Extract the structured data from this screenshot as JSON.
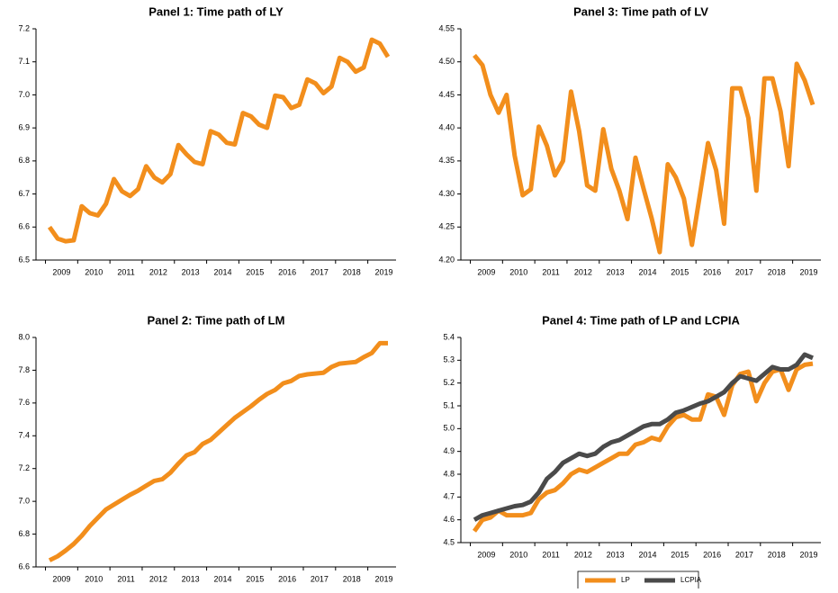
{
  "chart_data": [
    {
      "type": "line",
      "title": "Panel 1: Time path of LY",
      "categories": [
        null,
        "2009",
        null,
        null,
        null,
        "2010",
        null,
        null,
        null,
        "2011",
        null,
        null,
        null,
        "2012",
        null,
        null,
        null,
        "2013",
        null,
        null,
        null,
        "2014",
        null,
        null,
        null,
        "2015",
        null,
        null,
        null,
        "2016",
        null,
        null,
        null,
        "2017",
        null,
        null,
        null,
        "2018",
        null,
        null,
        null,
        "2019",
        null
      ],
      "values": [
        6.6,
        6.565,
        6.557,
        6.56,
        6.663,
        6.642,
        6.635,
        6.67,
        6.745,
        6.708,
        6.694,
        6.715,
        6.784,
        6.75,
        6.735,
        6.76,
        6.848,
        6.82,
        6.797,
        6.79,
        6.89,
        6.88,
        6.855,
        6.85,
        6.945,
        6.935,
        6.91,
        6.9,
        6.998,
        6.993,
        6.96,
        6.97,
        7.047,
        7.035,
        7.005,
        7.025,
        7.112,
        7.1,
        7.07,
        7.083,
        7.167,
        7.155,
        7.115
      ],
      "color": "#f28e1c",
      "ylim": [
        6.5,
        7.2
      ],
      "yticks": [
        6.5,
        6.6,
        6.7,
        6.8,
        6.9,
        {
          "value": 7,
          "label": "7.0"
        },
        7.1,
        7.2
      ]
    },
    {
      "type": "line",
      "title": "Panel 3: Time path of LV",
      "categories": [
        null,
        "2009",
        null,
        null,
        null,
        "2010",
        null,
        null,
        null,
        "2011",
        null,
        null,
        null,
        "2012",
        null,
        null,
        null,
        "2013",
        null,
        null,
        null,
        "2014",
        null,
        null,
        null,
        "2015",
        null,
        null,
        null,
        "2016",
        null,
        null,
        null,
        "2017",
        null,
        null,
        null,
        "2018",
        null,
        null,
        null,
        "2019",
        null
      ],
      "values": [
        4.51,
        4.495,
        4.45,
        4.423,
        4.45,
        4.358,
        4.298,
        4.307,
        4.402,
        4.373,
        4.328,
        4.35,
        4.455,
        4.395,
        4.313,
        4.305,
        4.398,
        4.338,
        4.305,
        4.262,
        4.355,
        4.308,
        4.263,
        4.212,
        4.345,
        4.325,
        4.293,
        4.223,
        4.3,
        4.377,
        4.336,
        4.255,
        4.46,
        4.46,
        4.415,
        4.305,
        4.475,
        4.475,
        4.425,
        4.342,
        4.497,
        4.472,
        4.435
      ],
      "color": "#f28e1c",
      "ylim": [
        4.2,
        4.55
      ],
      "yticks": [
        {
          "value": 4.2,
          "label": "4.20"
        },
        4.25,
        {
          "value": 4.3,
          "label": "4.30"
        },
        4.35,
        {
          "value": 4.4,
          "label": "4.40"
        },
        4.45,
        {
          "value": 4.5,
          "label": "4.50"
        },
        4.55
      ]
    },
    {
      "type": "line",
      "title": "Panel 2: Time path of LM",
      "categories": [
        null,
        "2009",
        null,
        null,
        null,
        "2010",
        null,
        null,
        null,
        "2011",
        null,
        null,
        null,
        "2012",
        null,
        null,
        null,
        "2013",
        null,
        null,
        null,
        "2014",
        null,
        null,
        null,
        "2015",
        null,
        null,
        null,
        "2016",
        null,
        null,
        null,
        "2017",
        null,
        null,
        null,
        "2018",
        null,
        null,
        null,
        "2019",
        null
      ],
      "values": [
        6.64,
        6.665,
        6.7,
        6.74,
        6.79,
        6.85,
        6.9,
        6.95,
        6.98,
        7.01,
        7.04,
        7.065,
        7.095,
        7.125,
        7.135,
        7.175,
        7.23,
        7.28,
        7.3,
        7.35,
        7.375,
        7.42,
        7.465,
        7.51,
        7.545,
        7.58,
        7.62,
        7.655,
        7.68,
        7.72,
        7.735,
        7.765,
        7.775,
        7.78,
        7.785,
        7.82,
        7.84,
        7.845,
        7.85,
        7.88,
        7.905,
        7.965,
        7.965
      ],
      "color": "#f28e1c",
      "ylim": [
        6.6,
        8.0
      ],
      "yticks": [
        6.6,
        6.8,
        {
          "value": 7,
          "label": "7.0"
        },
        7.2,
        7.4,
        7.6,
        7.8,
        {
          "value": 8,
          "label": "8.0"
        }
      ]
    },
    {
      "type": "line",
      "title": "Panel 4: Time path of LP and LCPIA",
      "categories": [
        null,
        "2009",
        null,
        null,
        null,
        "2010",
        null,
        null,
        null,
        "2011",
        null,
        null,
        null,
        "2012",
        null,
        null,
        null,
        "2013",
        null,
        null,
        null,
        "2014",
        null,
        null,
        null,
        "2015",
        null,
        null,
        null,
        "2016",
        null,
        null,
        null,
        "2017",
        null,
        null,
        null,
        "2018",
        null,
        null,
        null,
        "2019",
        null
      ],
      "series": [
        {
          "name": "LP",
          "color": "#f28e1c",
          "values": [
            4.55,
            4.6,
            4.61,
            4.64,
            4.62,
            4.62,
            4.62,
            4.63,
            4.69,
            4.72,
            4.73,
            4.76,
            4.8,
            4.82,
            4.81,
            4.83,
            4.85,
            4.87,
            4.89,
            4.89,
            4.93,
            4.94,
            4.96,
            4.95,
            5.01,
            5.05,
            5.06,
            5.04,
            5.04,
            5.15,
            5.14,
            5.06,
            5.19,
            5.24,
            5.25,
            5.12,
            5.2,
            5.25,
            5.26,
            5.17,
            5.26,
            5.28,
            5.285
          ]
        },
        {
          "name": "LCPIA",
          "color": "#4a4a4a",
          "values": [
            4.6,
            4.62,
            4.63,
            4.64,
            4.65,
            4.66,
            4.665,
            4.68,
            4.72,
            4.78,
            4.81,
            4.85,
            4.87,
            4.89,
            4.88,
            4.89,
            4.92,
            4.94,
            4.95,
            4.97,
            4.99,
            5.01,
            5.02,
            5.02,
            5.04,
            5.07,
            5.08,
            5.095,
            5.11,
            5.12,
            5.14,
            5.16,
            5.2,
            5.23,
            5.22,
            5.21,
            5.24,
            5.27,
            5.26,
            5.26,
            5.28,
            5.325,
            5.31
          ]
        }
      ],
      "ylim": [
        4.5,
        5.4
      ],
      "yticks": [
        4.5,
        4.6,
        4.7,
        4.8,
        4.9,
        {
          "value": 5,
          "label": "5.0"
        },
        5.1,
        5.2,
        5.3,
        5.4
      ],
      "legend": "bottom"
    }
  ]
}
